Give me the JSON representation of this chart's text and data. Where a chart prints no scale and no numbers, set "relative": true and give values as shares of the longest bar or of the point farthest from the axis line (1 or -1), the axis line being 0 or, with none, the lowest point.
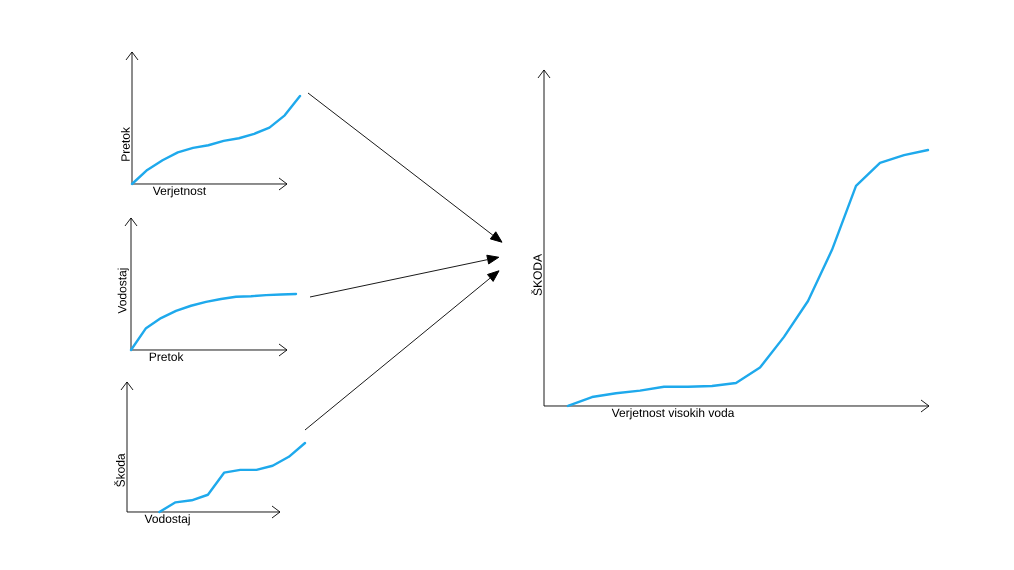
{
  "chart_data": [
    {
      "type": "line",
      "relative": true,
      "xlabel": "Verjetnost",
      "ylabel": "Pretok",
      "categories": [
        null,
        null,
        null,
        null,
        null,
        null,
        null,
        null,
        null,
        null,
        null,
        null
      ],
      "color": "#1ea9ec",
      "values": [
        0,
        0.16,
        0.27,
        0.36,
        0.41,
        0.44,
        0.49,
        0.52,
        0.57,
        0.64,
        0.78,
        1
      ]
    },
    {
      "type": "line",
      "relative": true,
      "xlabel": "Pretok",
      "ylabel": "Vodostaj",
      "categories": [
        null,
        null,
        null,
        null,
        null,
        null,
        null,
        null,
        null,
        null,
        null,
        null
      ],
      "color": "#1ea9ec",
      "values": [
        0,
        0.39,
        0.57,
        0.7,
        0.79,
        0.86,
        0.91,
        0.95,
        0.96,
        0.98,
        0.99,
        1
      ]
    },
    {
      "type": "line",
      "relative": true,
      "xlabel": "Vodostaj",
      "ylabel": "Škoda",
      "categories": [
        null,
        null,
        null,
        null,
        null,
        null,
        null,
        null,
        null,
        null,
        null,
        null
      ],
      "color": "#1ea9ec",
      "values": [
        null,
        null,
        0,
        0.14,
        0.17,
        0.25,
        0.57,
        0.61,
        0.61,
        0.67,
        0.8,
        1
      ]
    },
    {
      "type": "line",
      "relative": true,
      "xlabel": "Verjetnost visokih voda",
      "ylabel": "ŠKODA",
      "categories": [
        null,
        null,
        null,
        null,
        null,
        null,
        null,
        null,
        null,
        null,
        null,
        null,
        null,
        null,
        null,
        null,
        null
      ],
      "color": "#1ea9ec",
      "values": [
        null,
        0,
        0.035,
        0.05,
        0.06,
        0.075,
        0.075,
        0.078,
        0.09,
        0.15,
        0.27,
        0.41,
        0.61,
        0.86,
        0.95,
        0.98,
        1
      ]
    }
  ]
}
